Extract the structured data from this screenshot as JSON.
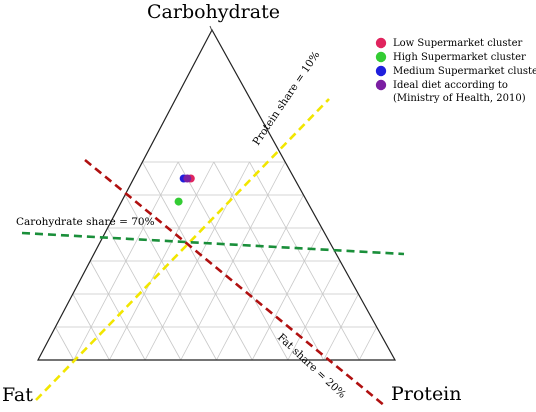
{
  "chart_data": {
    "type": "scatter",
    "subtype": "ternary",
    "vertex_labels": {
      "top": "Carbohydrate",
      "bottom_left": "Fat",
      "bottom_right": "Protein"
    },
    "grid": true,
    "legend_position": "top-right",
    "series": [
      {
        "name": "Low Supermarket cluster",
        "color": "#e0245e",
        "carbohydrate": 0.55,
        "fat": 0.29,
        "protein": 0.16
      },
      {
        "name": "High Supermarket cluster",
        "color": "#33cc33",
        "carbohydrate": 0.48,
        "fat": 0.36,
        "protein": 0.16
      },
      {
        "name": "Medium Supermarket cluster",
        "color": "#1f1fdd",
        "carbohydrate": 0.55,
        "fat": 0.31,
        "protein": 0.14
      },
      {
        "name": "Ideal diet according to\n(Ministry of Health, 2010)",
        "color": "#7b1fa2",
        "carbohydrate": 0.55,
        "fat": 0.3,
        "protein": 0.15
      }
    ],
    "reference_lines": [
      {
        "label": "Protein share = 10%",
        "color": "#f2e600",
        "style": "dashed"
      },
      {
        "label": "Carohydrate share = 70%",
        "color": "#1a8f3a",
        "style": "dashed"
      },
      {
        "label": "Fat share = 20%",
        "color": "#b01010",
        "style": "dashed"
      }
    ]
  }
}
